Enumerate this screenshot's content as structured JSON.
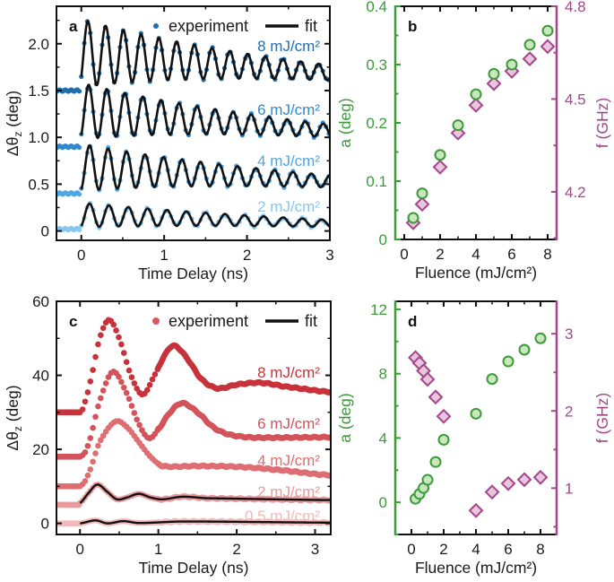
{
  "chart_data": [
    {
      "panel_label": "a",
      "type": "scatter",
      "xlabel": "Time Delay (ns)",
      "ylabel": {
        "main": "Δθ",
        "sub": "z",
        "rest": " (deg)"
      },
      "xlim": [
        -0.3,
        3.0
      ],
      "ylim": [
        -0.1,
        2.4
      ],
      "xticks": [
        0,
        1,
        2,
        3
      ],
      "xtick_labels": [
        "0",
        "1",
        "2",
        "3"
      ],
      "yticks": [
        0,
        0.5,
        1.0,
        1.5,
        2.0
      ],
      "ytick_labels": [
        "0",
        "0.5",
        "1.0",
        "1.5",
        "2.0"
      ],
      "legend": {
        "experiment": "experiment",
        "fit": "fit",
        "placement": "top-right",
        "marker_color": "#1f6fae"
      },
      "series": [
        {
          "name": "8 mJ/cm²",
          "color": "#1f6fae",
          "baseline": 1.5,
          "center_start": 1.9,
          "center_slope": -0.07,
          "amplitude": 0.36,
          "frequency_GHz": 4.67,
          "decay_ns": 2.0,
          "first_peak_ns": 0.08
        },
        {
          "name": "6 mJ/cm²",
          "color": "#2f8ad0",
          "baseline": 0.9,
          "center_start": 1.28,
          "center_slope": -0.07,
          "amplitude": 0.3,
          "frequency_GHz": 4.59,
          "decay_ns": 2.0,
          "first_peak_ns": 0.09
        },
        {
          "name": "4 mJ/cm²",
          "color": "#4ea6e3",
          "baseline": 0.4,
          "center_start": 0.68,
          "center_slope": -0.05,
          "amplitude": 0.25,
          "frequency_GHz": 4.48,
          "decay_ns": 2.2,
          "first_peak_ns": 0.1
        },
        {
          "name": "2 mJ/cm²",
          "color": "#86c8f2",
          "baseline": 0.02,
          "center_start": 0.17,
          "center_slope": -0.03,
          "amplitude": 0.13,
          "frequency_GHz": 4.28,
          "decay_ns": 2.4,
          "first_peak_ns": 0.1
        }
      ]
    },
    {
      "panel_label": "b",
      "type": "scatter",
      "xlabel": "Fluence (mJ/cm²)",
      "ylabel_left": "a (deg)",
      "ylabel_right": "f (GHz)",
      "xlim": [
        -0.5,
        8.5
      ],
      "ylim_left": [
        0,
        0.4
      ],
      "ylim_right": [
        4.046,
        4.8
      ],
      "xticks": [
        0,
        2,
        4,
        6,
        8
      ],
      "xtick_labels": [
        "0",
        "2",
        "4",
        "6",
        "8"
      ],
      "yticks_left": [
        0,
        0.1,
        0.2,
        0.3,
        0.4
      ],
      "ytick_labels_left": [
        "0",
        "0.1",
        "0.2",
        "0.3",
        "0.4"
      ],
      "yticks_right": [
        4.2,
        4.5,
        4.8
      ],
      "ytick_labels_right": [
        "4.2",
        "4.5",
        "4.8"
      ],
      "left_color": "#3d9a3a",
      "right_color": "#a4468c",
      "fluence": [
        0.5,
        1,
        2,
        3,
        4,
        5,
        6,
        7,
        8
      ],
      "a_deg": [
        0.037,
        0.079,
        0.145,
        0.196,
        0.249,
        0.284,
        0.3,
        0.334,
        0.358
      ],
      "f_GHz": [
        4.1,
        4.16,
        4.28,
        4.39,
        4.48,
        4.55,
        4.59,
        4.63,
        4.67
      ]
    },
    {
      "panel_label": "c",
      "type": "scatter",
      "xlabel": "Time Delay (ns)",
      "ylabel": {
        "main": "Δθ",
        "sub": "z",
        "rest": " (deg)"
      },
      "xlim": [
        -0.3,
        3.2
      ],
      "ylim": [
        -3,
        60
      ],
      "xticks": [
        0,
        1,
        2,
        3
      ],
      "xtick_labels": [
        "0",
        "1",
        "2",
        "3"
      ],
      "yticks": [
        0,
        20,
        40,
        60
      ],
      "ytick_labels": [
        "0",
        "20",
        "40",
        "60"
      ],
      "legend": {
        "experiment": "experiment",
        "fit": "fit",
        "placement": "top-right",
        "marker_color": "#d9585e"
      },
      "series": [
        {
          "name": "8 mJ/cm²",
          "color": "#c8323a",
          "baseline": 30,
          "has_fit": false,
          "t": [
            0,
            0.05,
            0.15,
            0.25,
            0.37,
            0.5,
            0.65,
            0.8,
            0.95,
            1.1,
            1.2,
            1.35,
            1.55,
            1.75,
            2.0,
            2.3,
            2.6,
            3.2
          ],
          "y": [
            30,
            32,
            40,
            50,
            55,
            50,
            40,
            34.8,
            40,
            46,
            48,
            45,
            39,
            36.5,
            37.5,
            38,
            37,
            35.5
          ]
        },
        {
          "name": "6 mJ/cm²",
          "color": "#d4535a",
          "baseline": 18,
          "has_fit": false,
          "t": [
            0,
            0.1,
            0.25,
            0.42,
            0.6,
            0.75,
            0.88,
            1.0,
            1.15,
            1.3,
            1.5,
            1.7,
            1.9,
            2.2,
            3.2
          ],
          "y": [
            18,
            21,
            33,
            41,
            35,
            27,
            23,
            25.5,
            30,
            32.5,
            30,
            26,
            24,
            23.2,
            23.3
          ]
        },
        {
          "name": "4 mJ/cm²",
          "color": "#de6e72",
          "baseline": 10,
          "has_fit": false,
          "t": [
            0,
            0.1,
            0.25,
            0.45,
            0.6,
            0.75,
            0.9,
            1.05,
            1.5,
            2.0,
            2.5,
            3.2
          ],
          "y": [
            10,
            13,
            22,
            27.5,
            26,
            22,
            18,
            15.5,
            15.5,
            15.3,
            14.5,
            13
          ]
        },
        {
          "name": "2 mJ/cm²",
          "color": "#e99a9c",
          "baseline": 5,
          "has_fit": true,
          "t": [
            0,
            0.1,
            0.22,
            0.35,
            0.47,
            0.6,
            0.75,
            0.9,
            1.05,
            1.3,
            1.6,
            3.2
          ],
          "y": [
            5.5,
            8,
            10.5,
            8.5,
            6.5,
            7,
            8,
            7,
            6.5,
            7.2,
            6.8,
            6.3
          ]
        },
        {
          "name": "0.5 mJ/cm²",
          "color": "#f2b9ba",
          "baseline": 0,
          "has_fit": true,
          "t": [
            0,
            0.2,
            0.35,
            0.55,
            0.75,
            1.3,
            3.2
          ],
          "y": [
            0,
            0.8,
            0,
            0.6,
            0.1,
            0.5,
            0.2
          ]
        }
      ]
    },
    {
      "panel_label": "d",
      "type": "scatter",
      "xlabel": "Fluence (mJ/cm²)",
      "ylabel_left": "a (deg)",
      "ylabel_right": "f (GHz)",
      "xlim": [
        -1,
        9
      ],
      "ylim_left": [
        -2,
        12.5
      ],
      "ylim_right": [
        0.4,
        3.42
      ],
      "xticks": [
        0,
        2,
        4,
        6,
        8
      ],
      "xtick_labels": [
        "0",
        "2",
        "4",
        "6",
        "8"
      ],
      "yticks_left": [
        0,
        4,
        8,
        12
      ],
      "ytick_labels_left": [
        "0",
        "4",
        "8",
        "12"
      ],
      "yticks_right": [
        1,
        2,
        3
      ],
      "ytick_labels_right": [
        "1",
        "2",
        "3"
      ],
      "left_color": "#3d9a3a",
      "right_color": "#a4468c",
      "fluence": [
        0.25,
        0.5,
        0.75,
        1,
        1.5,
        2,
        4,
        5,
        6,
        7,
        8
      ],
      "a_deg": [
        0.22,
        0.52,
        0.89,
        1.4,
        2.51,
        3.89,
        5.51,
        7.67,
        8.76,
        9.49,
        10.2
      ],
      "f_GHz": [
        2.69,
        2.62,
        2.52,
        2.41,
        2.18,
        1.93,
        0.71,
        0.95,
        1.06,
        1.11,
        1.14
      ]
    }
  ]
}
